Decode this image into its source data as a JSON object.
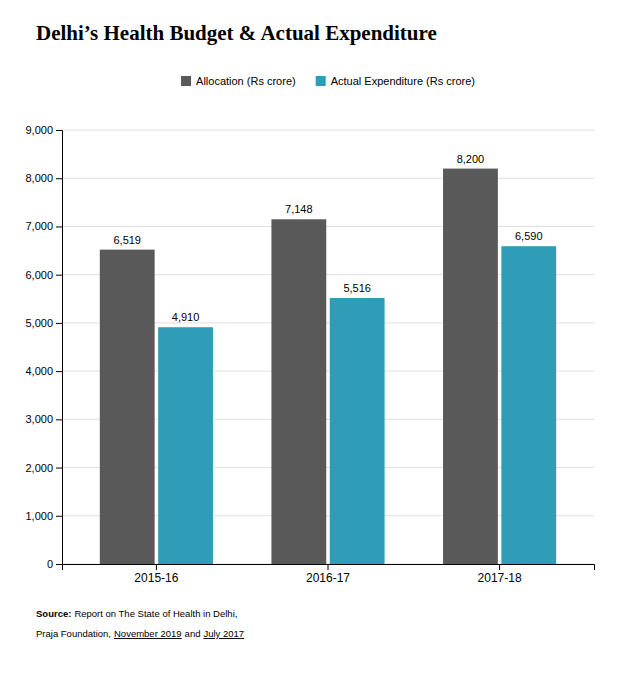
{
  "chart_data": {
    "type": "bar",
    "title": "Delhi’s Health Budget & Actual Expenditure",
    "categories": [
      "2015-16",
      "2016-17",
      "2017-18"
    ],
    "series": [
      {
        "name": "Allocation (Rs crore)",
        "color": "#595959",
        "values": [
          6519,
          7148,
          8200
        ],
        "value_labels": [
          "6,519",
          "7,148",
          "8,200"
        ]
      },
      {
        "name": "Actual Expenditure (Rs crore)",
        "color": "#2e9db5",
        "values": [
          4910,
          5516,
          6590
        ],
        "value_labels": [
          "4,910",
          "5,516",
          "6,590"
        ]
      }
    ],
    "ylim": [
      0,
      9000
    ],
    "yticks": [
      0,
      {
        "value": 1000,
        "label": "1,000"
      },
      {
        "value": 2000,
        "label": "2,000"
      },
      {
        "value": 3000,
        "label": "3,000"
      },
      {
        "value": 4000,
        "label": "4,000"
      },
      {
        "value": 5000,
        "label": "5,000"
      },
      {
        "value": 6000,
        "label": "6,000"
      },
      {
        "value": 7000,
        "label": "7,000"
      },
      {
        "value": 8000,
        "label": "8,000"
      },
      {
        "value": 9000,
        "label": "9,000"
      }
    ],
    "grid": true,
    "legend": "top",
    "data_labels": true,
    "annotations": [
      "Source:",
      "Report on The State of Health in Delhi,",
      "Praja Foundation,",
      "November 2019",
      "and",
      "July 2017"
    ]
  }
}
